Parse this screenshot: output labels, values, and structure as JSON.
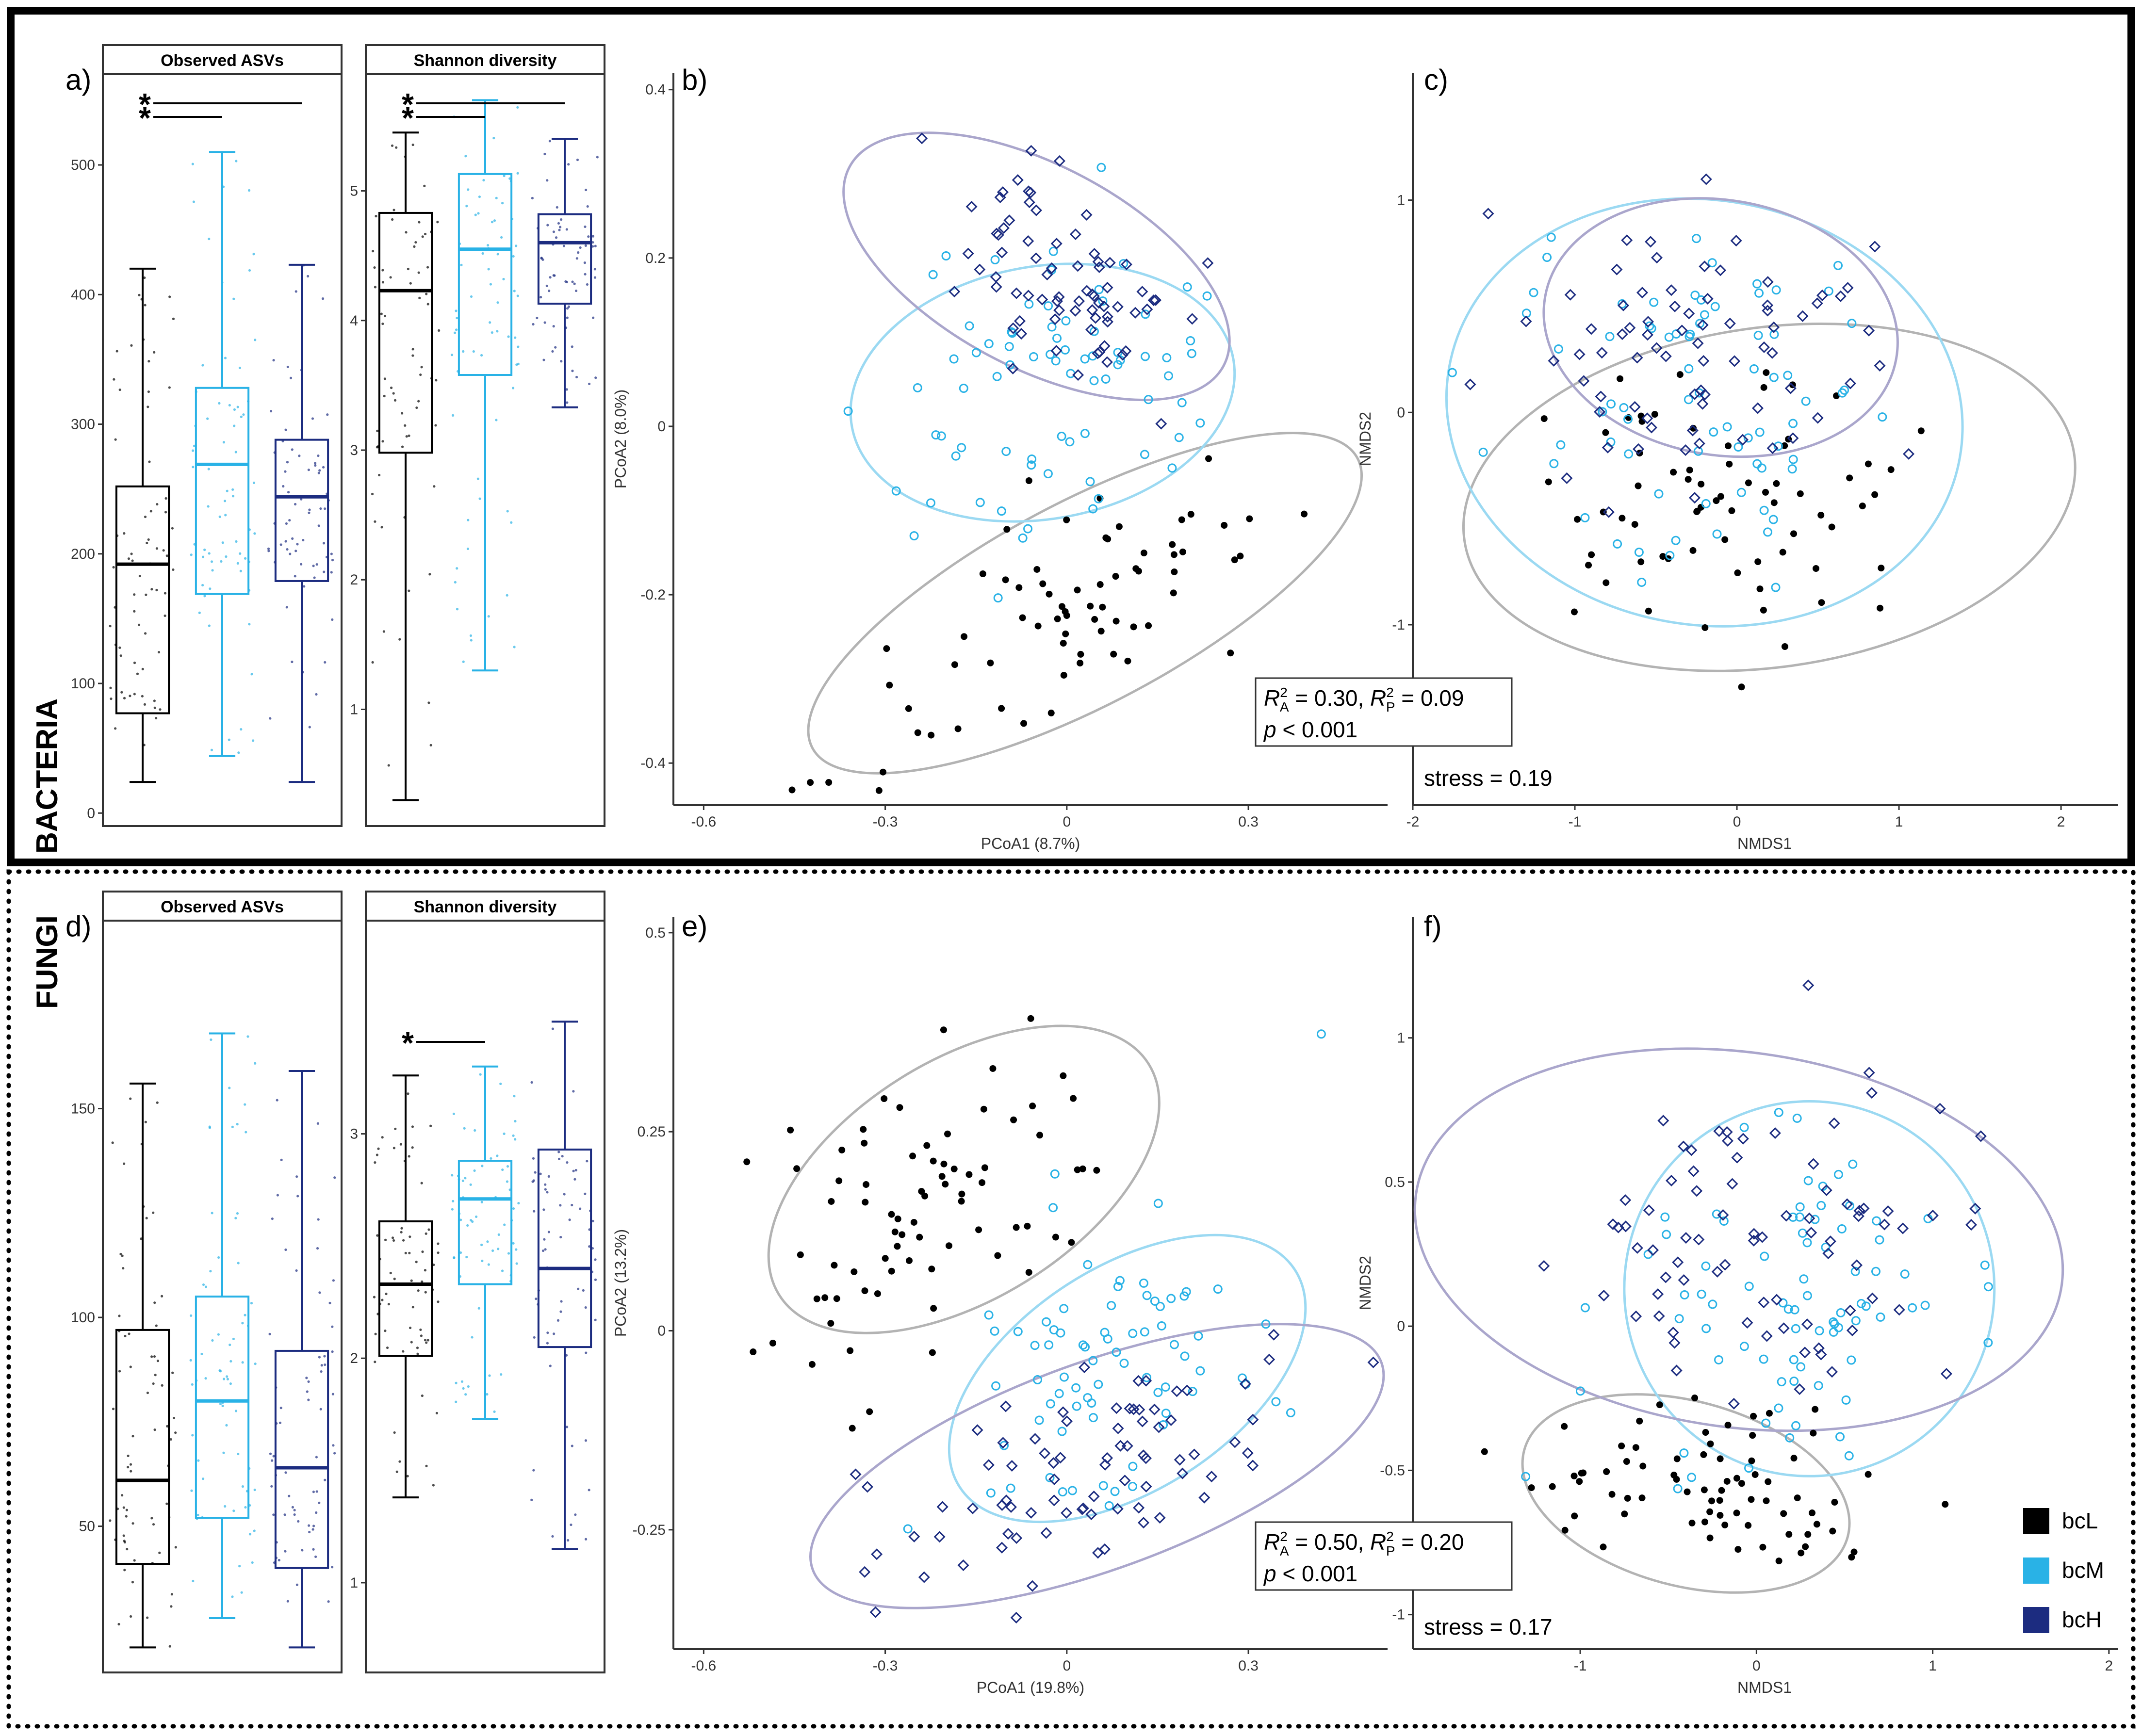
{
  "sections": {
    "bacteria": "BACTERIA",
    "fungi": "FUNGI"
  },
  "colors": {
    "bcL": "#000000",
    "bcM": "#29b2e6",
    "bcH": "#1c2c80",
    "ellL": "#b3b3b3",
    "ellM": "#9bd9f2",
    "ellH": "#aaa6cc"
  },
  "legend": [
    {
      "label": "bcL",
      "color": "#000000"
    },
    {
      "label": "bcM",
      "color": "#29b2e6"
    },
    {
      "label": "bcH",
      "color": "#1c2c80"
    }
  ],
  "chart_data": [
    {
      "id": "a",
      "type": "box",
      "panel_label": "a)",
      "title": "Observed ASVs",
      "ylim": [
        -10,
        570
      ],
      "yticks": [
        0,
        100,
        200,
        300,
        400,
        500
      ],
      "groups": [
        {
          "name": "bcL",
          "min": 24,
          "q1": 77,
          "median": 192,
          "q3": 252,
          "max": 420
        },
        {
          "name": "bcM",
          "min": 44,
          "q1": 169,
          "median": 269,
          "q3": 328,
          "max": 510
        },
        {
          "name": "bcH",
          "min": 24,
          "q1": 179,
          "median": 244,
          "q3": 288,
          "max": 423
        }
      ],
      "significance": [
        {
          "from": 0,
          "to": 1,
          "label": "*"
        },
        {
          "from": 0,
          "to": 2,
          "label": "*"
        }
      ]
    },
    {
      "id": "a2",
      "type": "box",
      "title": "Shannon diversity",
      "ylim": [
        0.1,
        5.9
      ],
      "yticks": [
        1,
        2,
        3,
        4,
        5
      ],
      "groups": [
        {
          "name": "bcL",
          "min": 0.3,
          "q1": 2.98,
          "median": 4.23,
          "q3": 4.83,
          "max": 5.45
        },
        {
          "name": "bcM",
          "min": 1.3,
          "q1": 3.58,
          "median": 4.55,
          "q3": 5.13,
          "max": 5.7
        },
        {
          "name": "bcH",
          "min": 3.33,
          "q1": 4.13,
          "median": 4.6,
          "q3": 4.82,
          "max": 5.4
        }
      ],
      "significance": [
        {
          "from": 0,
          "to": 1,
          "label": "*"
        },
        {
          "from": 0,
          "to": 2,
          "label": "*"
        }
      ]
    },
    {
      "id": "b",
      "type": "scatter",
      "panel_label": "b)",
      "xlabel": "PCoA1 (8.7%)",
      "ylabel": "PCoA2 (8.0%)",
      "xlim": [
        -0.65,
        0.53
      ],
      "ylim": [
        -0.45,
        0.42
      ],
      "xticks": [
        -0.6,
        -0.3,
        0.0,
        0.3
      ],
      "yticks": [
        -0.4,
        -0.2,
        0.0,
        0.2,
        0.4
      ],
      "groups": [
        {
          "name": "bcL",
          "center": [
            0.02,
            -0.22
          ],
          "spread": [
            0.2,
            0.06
          ],
          "rot": 26,
          "n": 70
        },
        {
          "name": "bcM",
          "center": [
            -0.02,
            0.06
          ],
          "spread": [
            0.14,
            0.09
          ],
          "rot": 10,
          "n": 75
        },
        {
          "name": "bcH",
          "center": [
            -0.02,
            0.18
          ],
          "spread": [
            0.12,
            0.055
          ],
          "rot": -28,
          "n": 75
        }
      ],
      "ellipses": [
        {
          "group": "bcL",
          "center": [
            0.03,
            -0.21
          ],
          "rx": 0.51,
          "ry": 0.12,
          "rot": 28
        },
        {
          "group": "bcM",
          "center": [
            -0.04,
            0.04
          ],
          "rx": 0.32,
          "ry": 0.15,
          "rot": 10
        },
        {
          "group": "bcH",
          "center": [
            -0.05,
            0.19
          ],
          "rx": 0.35,
          "ry": 0.12,
          "rot": -28
        }
      ]
    },
    {
      "id": "c",
      "type": "scatter",
      "panel_label": "c)",
      "xlabel": "NMDS1",
      "ylabel": "NMDS2",
      "xlim": [
        -2.0,
        2.35
      ],
      "ylim": [
        -1.85,
        1.6
      ],
      "xticks": [
        -2,
        -1,
        0,
        1,
        2
      ],
      "yticks": [
        -1,
        0,
        1
      ],
      "groups": [
        {
          "name": "bcL",
          "center": [
            -0.1,
            -0.5
          ],
          "spread": [
            0.55,
            0.35
          ],
          "rot": 10,
          "n": 70
        },
        {
          "name": "bcM",
          "center": [
            -0.2,
            0.1
          ],
          "spread": [
            0.55,
            0.45
          ],
          "rot": 10,
          "n": 75
        },
        {
          "name": "bcH",
          "center": [
            -0.2,
            0.3
          ],
          "spread": [
            0.55,
            0.35
          ],
          "rot": -10,
          "n": 75
        }
      ],
      "ellipses": [
        {
          "group": "bcL",
          "center": [
            0.2,
            -0.4
          ],
          "rx": 1.9,
          "ry": 0.8,
          "rot": 8
        },
        {
          "group": "bcM",
          "center": [
            -0.2,
            0.0
          ],
          "rx": 1.6,
          "ry": 1.0,
          "rot": -10
        },
        {
          "group": "bcH",
          "center": [
            -0.1,
            0.4
          ],
          "rx": 1.1,
          "ry": 0.6,
          "rot": -10
        }
      ],
      "stress": "stress = 0.19"
    },
    {
      "id": "d",
      "type": "box",
      "panel_label": "d)",
      "title": "Observed ASVs",
      "ylim": [
        15,
        195
      ],
      "yticks": [
        50,
        100,
        150
      ],
      "groups": [
        {
          "name": "bcL",
          "min": 21,
          "q1": 41,
          "median": 61,
          "q3": 97,
          "max": 156
        },
        {
          "name": "bcM",
          "min": 28,
          "q1": 52,
          "median": 80,
          "q3": 105,
          "max": 168
        },
        {
          "name": "bcH",
          "min": 21,
          "q1": 40,
          "median": 64,
          "q3": 92,
          "max": 159
        }
      ],
      "significance": []
    },
    {
      "id": "d2",
      "type": "box",
      "title": "Shannon diversity",
      "ylim": [
        0.6,
        3.95
      ],
      "yticks": [
        1,
        2,
        3
      ],
      "groups": [
        {
          "name": "bcL",
          "min": 1.38,
          "q1": 2.01,
          "median": 2.33,
          "q3": 2.61,
          "max": 3.26
        },
        {
          "name": "bcM",
          "min": 1.73,
          "q1": 2.33,
          "median": 2.71,
          "q3": 2.88,
          "max": 3.3
        },
        {
          "name": "bcH",
          "min": 1.15,
          "q1": 2.05,
          "median": 2.4,
          "q3": 2.93,
          "max": 3.5
        }
      ],
      "significance": [
        {
          "from": 0,
          "to": 1,
          "label": "*"
        }
      ]
    },
    {
      "id": "e",
      "type": "scatter",
      "panel_label": "e)",
      "xlabel": "PCoA1 (19.8%)",
      "ylabel": "PCoA2 (13.2%)",
      "xlim": [
        -0.65,
        0.53
      ],
      "ylim": [
        -0.4,
        0.52
      ],
      "xticks": [
        -0.6,
        -0.3,
        0.0,
        0.3
      ],
      "yticks": [
        -0.25,
        0.0,
        0.25,
        0.5
      ],
      "groups": [
        {
          "name": "bcL",
          "center": [
            -0.2,
            0.15
          ],
          "spread": [
            0.15,
            0.09
          ],
          "rot": 28,
          "n": 75
        },
        {
          "name": "bcM",
          "center": [
            0.08,
            -0.04
          ],
          "spread": [
            0.12,
            0.09
          ],
          "rot": 30,
          "n": 75
        },
        {
          "name": "bcH",
          "center": [
            0.05,
            -0.17
          ],
          "spread": [
            0.17,
            0.05
          ],
          "rot": 18,
          "n": 80
        }
      ],
      "ellipses": [
        {
          "group": "bcL",
          "center": [
            -0.17,
            0.19
          ],
          "rx": 0.36,
          "ry": 0.15,
          "rot": 32
        },
        {
          "group": "bcM",
          "center": [
            0.1,
            -0.06
          ],
          "rx": 0.33,
          "ry": 0.14,
          "rot": 33
        },
        {
          "group": "bcH",
          "center": [
            0.05,
            -0.17
          ],
          "rx": 0.5,
          "ry": 0.13,
          "rot": 20
        }
      ]
    },
    {
      "id": "f",
      "type": "scatter",
      "panel_label": "f)",
      "xlabel": "NMDS1",
      "ylabel": "NMDS2",
      "xlim": [
        -1.95,
        2.05
      ],
      "ylim": [
        -1.12,
        1.42
      ],
      "xticks": [
        -1,
        0,
        1,
        2
      ],
      "yticks": [
        -1.0,
        -0.5,
        0.0,
        0.5,
        1.0
      ],
      "groups": [
        {
          "name": "bcL",
          "center": [
            -0.3,
            -0.55
          ],
          "spread": [
            0.5,
            0.15
          ],
          "rot": 0,
          "n": 75
        },
        {
          "name": "bcM",
          "center": [
            0.2,
            0.05
          ],
          "spread": [
            0.45,
            0.3
          ],
          "rot": 0,
          "n": 80
        },
        {
          "name": "bcH",
          "center": [
            0.0,
            0.3
          ],
          "spread": [
            0.6,
            0.3
          ],
          "rot": 0,
          "n": 80
        }
      ],
      "ellipses": [
        {
          "group": "bcL",
          "center": [
            -0.4,
            -0.58
          ],
          "rx": 0.95,
          "ry": 0.32,
          "rot": -15
        },
        {
          "group": "bcM",
          "center": [
            0.3,
            0.13
          ],
          "rx": 1.05,
          "ry": 0.65,
          "rot": 0
        },
        {
          "group": "bcH",
          "center": [
            -0.1,
            0.3
          ],
          "rx": 1.85,
          "ry": 0.65,
          "rot": -8
        }
      ],
      "stress": "stress = 0.17"
    }
  ],
  "stat_boxes": [
    {
      "panel": "b",
      "line1": [
        "R",
        "2",
        "A",
        " = 0.30, ",
        "R",
        "2",
        "P",
        " = 0.09"
      ],
      "line2": [
        "p",
        " < 0.001"
      ]
    },
    {
      "panel": "e",
      "line1": [
        "R",
        "2",
        "A",
        " = 0.50, ",
        "R",
        "2",
        "P",
        " = 0.20"
      ],
      "line2": [
        "p",
        " < 0.001"
      ]
    }
  ]
}
